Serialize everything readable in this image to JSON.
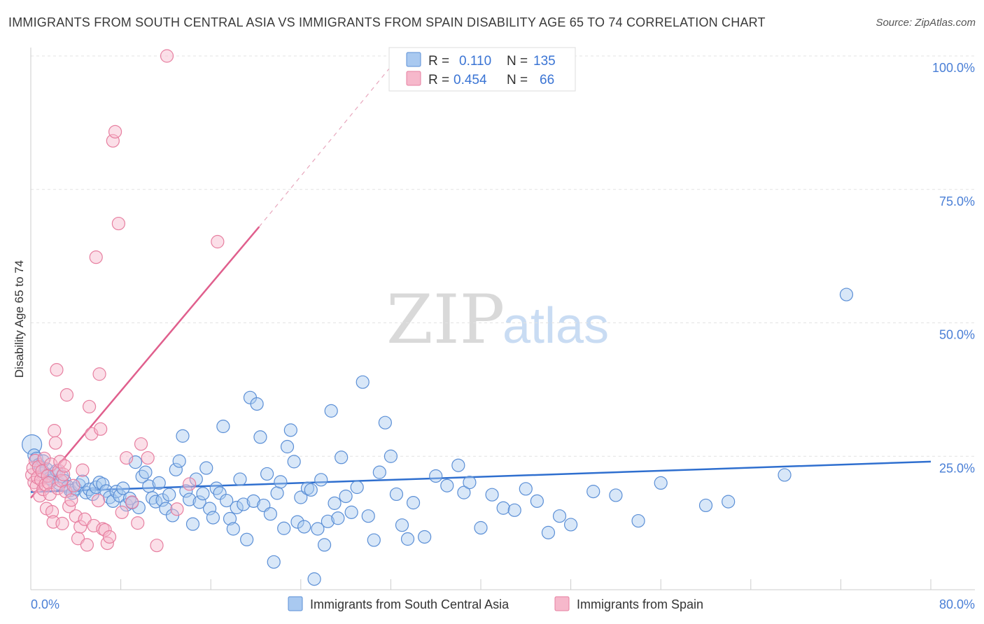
{
  "title": "IMMIGRANTS FROM SOUTH CENTRAL ASIA VS IMMIGRANTS FROM SPAIN DISABILITY AGE 65 TO 74 CORRELATION CHART",
  "source": "Source: ZipAtlas.com",
  "watermark": {
    "zip": "ZIP",
    "atlas": "atlas"
  },
  "colors": {
    "blue_fill": "#a9c9f0",
    "blue_stroke": "#5b8fd6",
    "blue_line": "#2f6fcf",
    "pink_fill": "#f6b8cb",
    "pink_stroke": "#e77fa0",
    "pink_line": "#e05f8d",
    "grid": "#e3e3e3",
    "tick_text": "#4a7fd6"
  },
  "legend": {
    "r_label": "R =",
    "n_label": "N =",
    "entries": [
      {
        "r": "0.110",
        "n": "135"
      },
      {
        "r": "0.454",
        "n": "66"
      }
    ]
  },
  "chart_data": {
    "type": "scatter",
    "title": "IMMIGRANTS FROM SOUTH CENTRAL ASIA VS IMMIGRANTS FROM SPAIN DISABILITY AGE 65 TO 74 CORRELATION CHART",
    "xlabel": "",
    "ylabel": "Disability Age 65 to 74",
    "xlim": [
      0,
      80
    ],
    "ylim": [
      0,
      100
    ],
    "x_tick_labels": [
      "0.0%",
      "80.0%"
    ],
    "y_ticks": [
      25,
      50,
      75,
      100
    ],
    "y_tick_labels": [
      "25.0%",
      "50.0%",
      "75.0%",
      "100.0%"
    ],
    "grid": true,
    "legend_position": "top-center",
    "series": [
      {
        "name": "Immigrants from South Central Asia",
        "r": 0.11,
        "n": 135,
        "trend": {
          "x": [
            0,
            80
          ],
          "y": [
            18.3,
            24.0
          ]
        },
        "points": [
          [
            0.1,
            27.2
          ],
          [
            0.3,
            25.2
          ],
          [
            0.5,
            24.6
          ],
          [
            0.7,
            23.4
          ],
          [
            0.9,
            22.9
          ],
          [
            1.1,
            24.1
          ],
          [
            1.2,
            21.9
          ],
          [
            1.4,
            22.6
          ],
          [
            1.5,
            21.4
          ],
          [
            1.7,
            20.9
          ],
          [
            1.9,
            20.5
          ],
          [
            2.1,
            21.8
          ],
          [
            2.3,
            22.3
          ],
          [
            2.5,
            19.9
          ],
          [
            2.8,
            21.2
          ],
          [
            3.0,
            20.4
          ],
          [
            3.3,
            19.3
          ],
          [
            3.5,
            18.6
          ],
          [
            3.7,
            18.1
          ],
          [
            4.0,
            18.9
          ],
          [
            4.3,
            19.6
          ],
          [
            4.6,
            20.3
          ],
          [
            4.9,
            18.2
          ],
          [
            5.2,
            18.8
          ],
          [
            5.5,
            17.9
          ],
          [
            5.8,
            19.2
          ],
          [
            6.1,
            20.1
          ],
          [
            6.4,
            19.8
          ],
          [
            6.7,
            18.5
          ],
          [
            7.0,
            17.3
          ],
          [
            7.3,
            16.6
          ],
          [
            7.6,
            18.4
          ],
          [
            7.9,
            17.6
          ],
          [
            8.2,
            19.0
          ],
          [
            8.5,
            15.9
          ],
          [
            8.8,
            17.1
          ],
          [
            9.0,
            16.3
          ],
          [
            9.3,
            23.9
          ],
          [
            9.6,
            15.4
          ],
          [
            9.9,
            21.2
          ],
          [
            10.2,
            22.0
          ],
          [
            10.5,
            19.4
          ],
          [
            10.8,
            17.2
          ],
          [
            11.1,
            16.5
          ],
          [
            11.4,
            20.0
          ],
          [
            11.7,
            16.8
          ],
          [
            12.0,
            15.2
          ],
          [
            12.3,
            17.8
          ],
          [
            12.6,
            13.9
          ],
          [
            12.9,
            22.5
          ],
          [
            13.2,
            24.1
          ],
          [
            13.5,
            28.8
          ],
          [
            13.8,
            18.5
          ],
          [
            14.1,
            16.9
          ],
          [
            14.4,
            12.3
          ],
          [
            14.7,
            20.7
          ],
          [
            15.0,
            16.4
          ],
          [
            15.3,
            18.0
          ],
          [
            15.6,
            22.8
          ],
          [
            15.9,
            15.2
          ],
          [
            16.2,
            13.5
          ],
          [
            16.5,
            19.0
          ],
          [
            16.8,
            18.1
          ],
          [
            17.1,
            30.6
          ],
          [
            17.4,
            16.7
          ],
          [
            17.7,
            13.3
          ],
          [
            18.0,
            11.4
          ],
          [
            18.3,
            15.4
          ],
          [
            18.6,
            20.7
          ],
          [
            18.9,
            16.0
          ],
          [
            19.2,
            9.4
          ],
          [
            19.5,
            36.0
          ],
          [
            19.8,
            16.6
          ],
          [
            20.1,
            34.8
          ],
          [
            20.4,
            28.6
          ],
          [
            20.7,
            15.8
          ],
          [
            21.0,
            21.7
          ],
          [
            21.3,
            14.2
          ],
          [
            21.6,
            5.2
          ],
          [
            21.9,
            18.1
          ],
          [
            22.2,
            20.2
          ],
          [
            22.5,
            11.5
          ],
          [
            22.8,
            26.8
          ],
          [
            23.1,
            29.9
          ],
          [
            23.4,
            24.0
          ],
          [
            23.7,
            12.7
          ],
          [
            24.0,
            17.3
          ],
          [
            24.3,
            11.8
          ],
          [
            24.6,
            19.0
          ],
          [
            24.9,
            18.7
          ],
          [
            25.2,
            2.0
          ],
          [
            25.5,
            11.4
          ],
          [
            25.8,
            20.6
          ],
          [
            26.1,
            8.4
          ],
          [
            26.4,
            12.8
          ],
          [
            26.7,
            33.5
          ],
          [
            27.0,
            16.2
          ],
          [
            27.3,
            13.4
          ],
          [
            27.6,
            24.8
          ],
          [
            28.0,
            17.5
          ],
          [
            28.5,
            14.5
          ],
          [
            29.0,
            19.2
          ],
          [
            29.5,
            38.9
          ],
          [
            30.0,
            13.8
          ],
          [
            30.5,
            9.3
          ],
          [
            31.0,
            22.0
          ],
          [
            31.5,
            31.3
          ],
          [
            32.0,
            25.0
          ],
          [
            32.5,
            17.9
          ],
          [
            33.0,
            12.1
          ],
          [
            33.5,
            9.5
          ],
          [
            34.0,
            16.3
          ],
          [
            35.0,
            9.9
          ],
          [
            36.0,
            21.3
          ],
          [
            37.0,
            19.5
          ],
          [
            38.0,
            23.3
          ],
          [
            38.5,
            18.2
          ],
          [
            39.0,
            20.1
          ],
          [
            40.0,
            11.6
          ],
          [
            41.0,
            17.8
          ],
          [
            42.0,
            15.3
          ],
          [
            43.0,
            14.9
          ],
          [
            44.0,
            18.9
          ],
          [
            45.0,
            16.6
          ],
          [
            46.0,
            10.7
          ],
          [
            47.0,
            13.8
          ],
          [
            48.0,
            12.2
          ],
          [
            50.0,
            18.4
          ],
          [
            52.0,
            17.7
          ],
          [
            54.0,
            12.9
          ],
          [
            56.0,
            20.0
          ],
          [
            62.0,
            16.5
          ],
          [
            67.0,
            21.5
          ],
          [
            72.5,
            55.3
          ],
          [
            60.0,
            15.8
          ]
        ]
      },
      {
        "name": "Immigrants from Spain",
        "r": 0.454,
        "n": 66,
        "trend": {
          "x": [
            0,
            20.3
          ],
          "y": [
            17.2,
            68.0
          ]
        },
        "trend_dashed": {
          "x": [
            20.3,
            32.0
          ],
          "y": [
            68.0,
            98.0
          ]
        },
        "points": [
          [
            0.1,
            21.5
          ],
          [
            0.2,
            22.8
          ],
          [
            0.3,
            20.1
          ],
          [
            0.4,
            24.2
          ],
          [
            0.5,
            19.4
          ],
          [
            0.6,
            21.0
          ],
          [
            0.7,
            23.0
          ],
          [
            0.8,
            17.6
          ],
          [
            0.9,
            20.6
          ],
          [
            1.0,
            22.2
          ],
          [
            1.1,
            18.8
          ],
          [
            1.2,
            24.6
          ],
          [
            1.3,
            19.7
          ],
          [
            1.4,
            15.2
          ],
          [
            1.5,
            21.3
          ],
          [
            1.6,
            20.0
          ],
          [
            1.7,
            17.9
          ],
          [
            1.8,
            23.5
          ],
          [
            1.9,
            14.6
          ],
          [
            2.0,
            12.7
          ],
          [
            2.1,
            29.8
          ],
          [
            2.2,
            27.5
          ],
          [
            2.3,
            41.2
          ],
          [
            2.4,
            19.0
          ],
          [
            2.5,
            22.3
          ],
          [
            2.6,
            24.0
          ],
          [
            2.7,
            20.4
          ],
          [
            2.8,
            12.4
          ],
          [
            2.9,
            21.6
          ],
          [
            3.0,
            23.2
          ],
          [
            3.1,
            18.4
          ],
          [
            3.2,
            36.5
          ],
          [
            3.4,
            15.6
          ],
          [
            3.6,
            16.8
          ],
          [
            3.8,
            19.5
          ],
          [
            4.0,
            13.8
          ],
          [
            4.2,
            9.6
          ],
          [
            4.4,
            11.8
          ],
          [
            4.6,
            22.4
          ],
          [
            4.8,
            13.2
          ],
          [
            5.0,
            8.4
          ],
          [
            5.2,
            34.3
          ],
          [
            5.4,
            29.2
          ],
          [
            5.6,
            12.0
          ],
          [
            5.8,
            62.3
          ],
          [
            6.0,
            16.7
          ],
          [
            6.1,
            40.4
          ],
          [
            6.2,
            30.1
          ],
          [
            6.4,
            11.4
          ],
          [
            6.6,
            11.2
          ],
          [
            6.8,
            8.7
          ],
          [
            7.0,
            9.9
          ],
          [
            7.3,
            84.1
          ],
          [
            7.5,
            85.8
          ],
          [
            7.8,
            68.6
          ],
          [
            8.1,
            14.5
          ],
          [
            8.5,
            24.7
          ],
          [
            9.0,
            16.4
          ],
          [
            9.5,
            12.5
          ],
          [
            9.8,
            27.3
          ],
          [
            10.4,
            24.7
          ],
          [
            11.2,
            8.3
          ],
          [
            12.1,
            100.0
          ],
          [
            13.0,
            15.1
          ],
          [
            16.6,
            65.2
          ],
          [
            14.1,
            19.8
          ]
        ]
      }
    ]
  },
  "bottom_legend": [
    {
      "label": "Immigrants from South Central Asia"
    },
    {
      "label": "Immigrants from Spain"
    }
  ]
}
